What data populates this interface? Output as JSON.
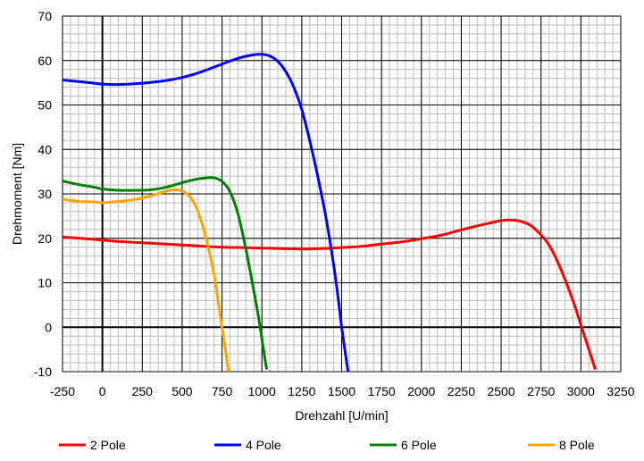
{
  "chart_data": {
    "type": "line",
    "title": "",
    "xlabel": "Drehzahl [U/min]",
    "ylabel": "Drehmoment [Nm]",
    "xlim": [
      -250,
      3250
    ],
    "ylim": [
      -10,
      70
    ],
    "x_major_step": 250,
    "y_major_step": 10,
    "x_minor_step": 50,
    "y_minor_step": 2,
    "x_ticks": [
      "-250",
      "0",
      "250",
      "500",
      "750",
      "1000",
      "1250",
      "1500",
      "1750",
      "2000",
      "2250",
      "2500",
      "2750",
      "3000",
      "3250"
    ],
    "y_ticks": [
      "-10",
      "0",
      "10",
      "20",
      "30",
      "40",
      "50",
      "60",
      "70"
    ],
    "grid": true,
    "legend_position": "bottom",
    "series": [
      {
        "name": "2 Pole",
        "color": "#ff0000",
        "x": [
          -250,
          -100,
          0,
          100,
          250,
          400,
          500,
          600,
          750,
          900,
          1000,
          1125,
          1250,
          1375,
          1500,
          1625,
          1750,
          1900,
          2000,
          2125,
          2250,
          2375,
          2450,
          2500,
          2560,
          2625,
          2700,
          2800,
          2875,
          2950,
          3000,
          3050,
          3090
        ],
        "y": [
          20.3,
          19.9,
          19.6,
          19.3,
          19.0,
          18.7,
          18.5,
          18.3,
          18.0,
          17.9,
          17.8,
          17.7,
          17.6,
          17.7,
          17.9,
          18.2,
          18.7,
          19.3,
          19.9,
          20.7,
          21.9,
          23.0,
          23.6,
          24.0,
          24.1,
          23.8,
          22.5,
          18.5,
          13.0,
          6.0,
          0.5,
          -5.0,
          -9.5
        ]
      },
      {
        "name": "4 Pole",
        "color": "#0000ff",
        "x": [
          -250,
          -100,
          0,
          100,
          250,
          400,
          500,
          600,
          750,
          850,
          950,
          1000,
          1050,
          1100,
          1150,
          1200,
          1250,
          1300,
          1350,
          1400,
          1450,
          1480,
          1500,
          1520,
          1540
        ],
        "y": [
          55.6,
          55.1,
          54.7,
          54.6,
          54.9,
          55.5,
          56.2,
          57.2,
          59.2,
          60.5,
          61.3,
          61.4,
          61.0,
          59.8,
          57.5,
          54.0,
          49.0,
          42.0,
          34.0,
          25.0,
          14.0,
          6.0,
          0.0,
          -5.0,
          -10.0
        ]
      },
      {
        "name": "6 Pole",
        "color": "#008000",
        "x": [
          -250,
          -150,
          -50,
          0,
          100,
          200,
          300,
          400,
          500,
          575,
          650,
          700,
          750,
          800,
          850,
          900,
          940,
          980,
          1010,
          1030
        ],
        "y": [
          32.9,
          32.1,
          31.5,
          31.1,
          30.8,
          30.8,
          30.9,
          31.5,
          32.5,
          33.2,
          33.6,
          33.6,
          32.8,
          30.5,
          25.5,
          17.5,
          10.0,
          2.0,
          -5.0,
          -9.5
        ]
      },
      {
        "name": "8 Pole",
        "color": "#ffa500",
        "x": [
          -250,
          -150,
          -50,
          0,
          100,
          200,
          300,
          400,
          450,
          500,
          550,
          600,
          650,
          700,
          725,
          750,
          775,
          790
        ],
        "y": [
          28.8,
          28.3,
          28.2,
          28.0,
          28.3,
          28.7,
          29.5,
          30.6,
          30.9,
          30.6,
          29.3,
          26.0,
          20.0,
          12.0,
          6.0,
          0.0,
          -6.0,
          -10.0
        ]
      }
    ]
  }
}
